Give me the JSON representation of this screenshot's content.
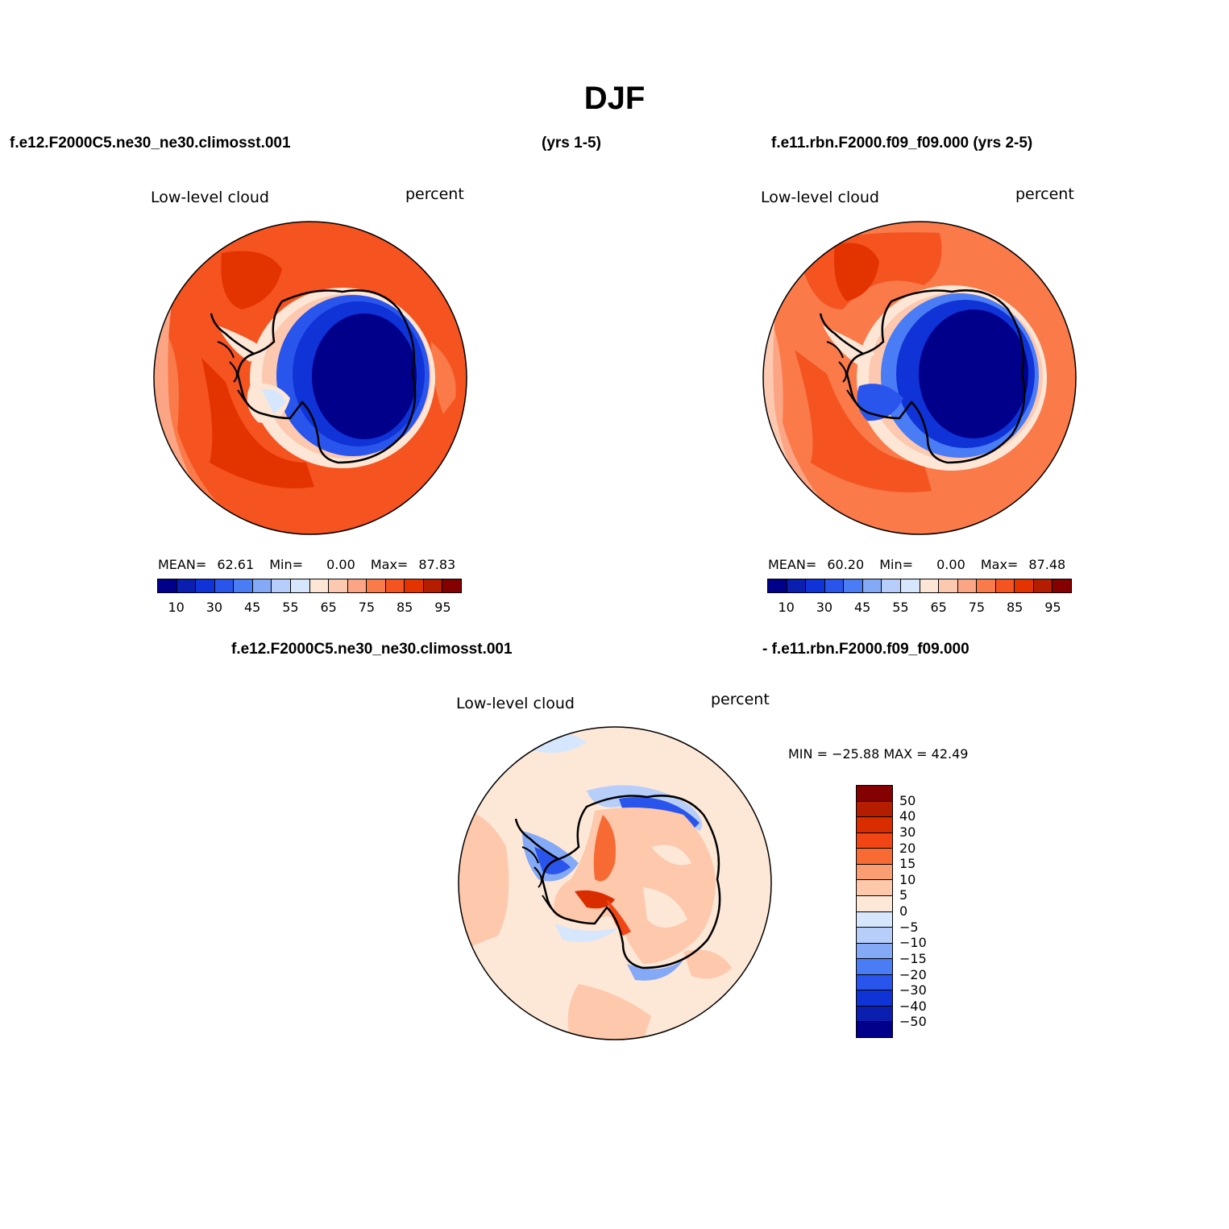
{
  "title": "DJF",
  "header": {
    "case1": "f.e12.F2000C5.ne30_ne30.climosst.001",
    "years1": "(yrs 1-5)",
    "case2": "f.e11.rbn.F2000.f09_f09.000 (yrs 2-5)"
  },
  "diff_header": {
    "left": "f.e12.F2000C5.ne30_ne30.climosst.001",
    "right": "- f.e11.rbn.F2000.f09_f09.000"
  },
  "panels": [
    {
      "variable": "Low-level cloud",
      "units": "percent",
      "mean_label": "MEAN=",
      "mean": "62.61",
      "min_label": "Min=",
      "min": "0.00",
      "max_label": "Max=",
      "max": "87.83"
    },
    {
      "variable": "Low-level cloud",
      "units": "percent",
      "mean_label": "MEAN=",
      "mean": "60.20",
      "min_label": "Min=",
      "min": "0.00",
      "max_label": "Max=",
      "max": "87.48"
    }
  ],
  "diff_panel": {
    "variable": "Low-level cloud",
    "units": "percent",
    "minmax": "MIN = −25.88 MAX =  42.49"
  },
  "abs_colorbar": {
    "colors": [
      "#00008b",
      "#0a1fb0",
      "#0f33d6",
      "#2a55ec",
      "#4a7cf5",
      "#84a9f7",
      "#b7cdfa",
      "#d6e6fd",
      "#fde6d6",
      "#fcc9b0",
      "#fba584",
      "#fa7a4a",
      "#f55320",
      "#e33400",
      "#b41d00",
      "#850000"
    ],
    "labels": [
      "10",
      "30",
      "45",
      "55",
      "65",
      "75",
      "85",
      "95"
    ]
  },
  "diff_colorbar": {
    "colors": [
      "#850000",
      "#b41d00",
      "#d92d00",
      "#f24515",
      "#f86a34",
      "#fb9d73",
      "#fdc8ab",
      "#fde8d8",
      "#d6e6fd",
      "#b7cdfa",
      "#84a9f7",
      "#4a7cf5",
      "#2a55ec",
      "#0f33d6",
      "#0a1fb0",
      "#00008b"
    ],
    "labels": [
      "50",
      "40",
      "30",
      "20",
      "15",
      "10",
      "5",
      "0",
      "−5",
      "−10",
      "−15",
      "−20",
      "−30",
      "−40",
      "−50"
    ]
  },
  "chart_data": {
    "type": "map",
    "projection": "south polar stereographic",
    "region": "Antarctica / Southern Ocean",
    "season": "DJF",
    "maps": [
      {
        "case": "f.e12.F2000C5.ne30_ne30.climosst.001",
        "field": "Low-level cloud",
        "units": "percent",
        "mean": 62.61,
        "min": 0.0,
        "max": 87.83
      },
      {
        "case": "f.e11.rbn.F2000.f09_f09.000",
        "field": "Low-level cloud",
        "units": "percent",
        "mean": 60.2,
        "min": 0.0,
        "max": 87.48
      },
      {
        "case": "difference",
        "field": "Low-level cloud",
        "units": "percent",
        "min": -25.88,
        "max": 42.49
      }
    ],
    "abs_levels": [
      10,
      30,
      45,
      55,
      65,
      75,
      85,
      95
    ],
    "diff_levels": [
      50,
      40,
      30,
      20,
      15,
      10,
      5,
      0,
      -5,
      -10,
      -15,
      -20,
      -30,
      -40,
      -50
    ]
  }
}
